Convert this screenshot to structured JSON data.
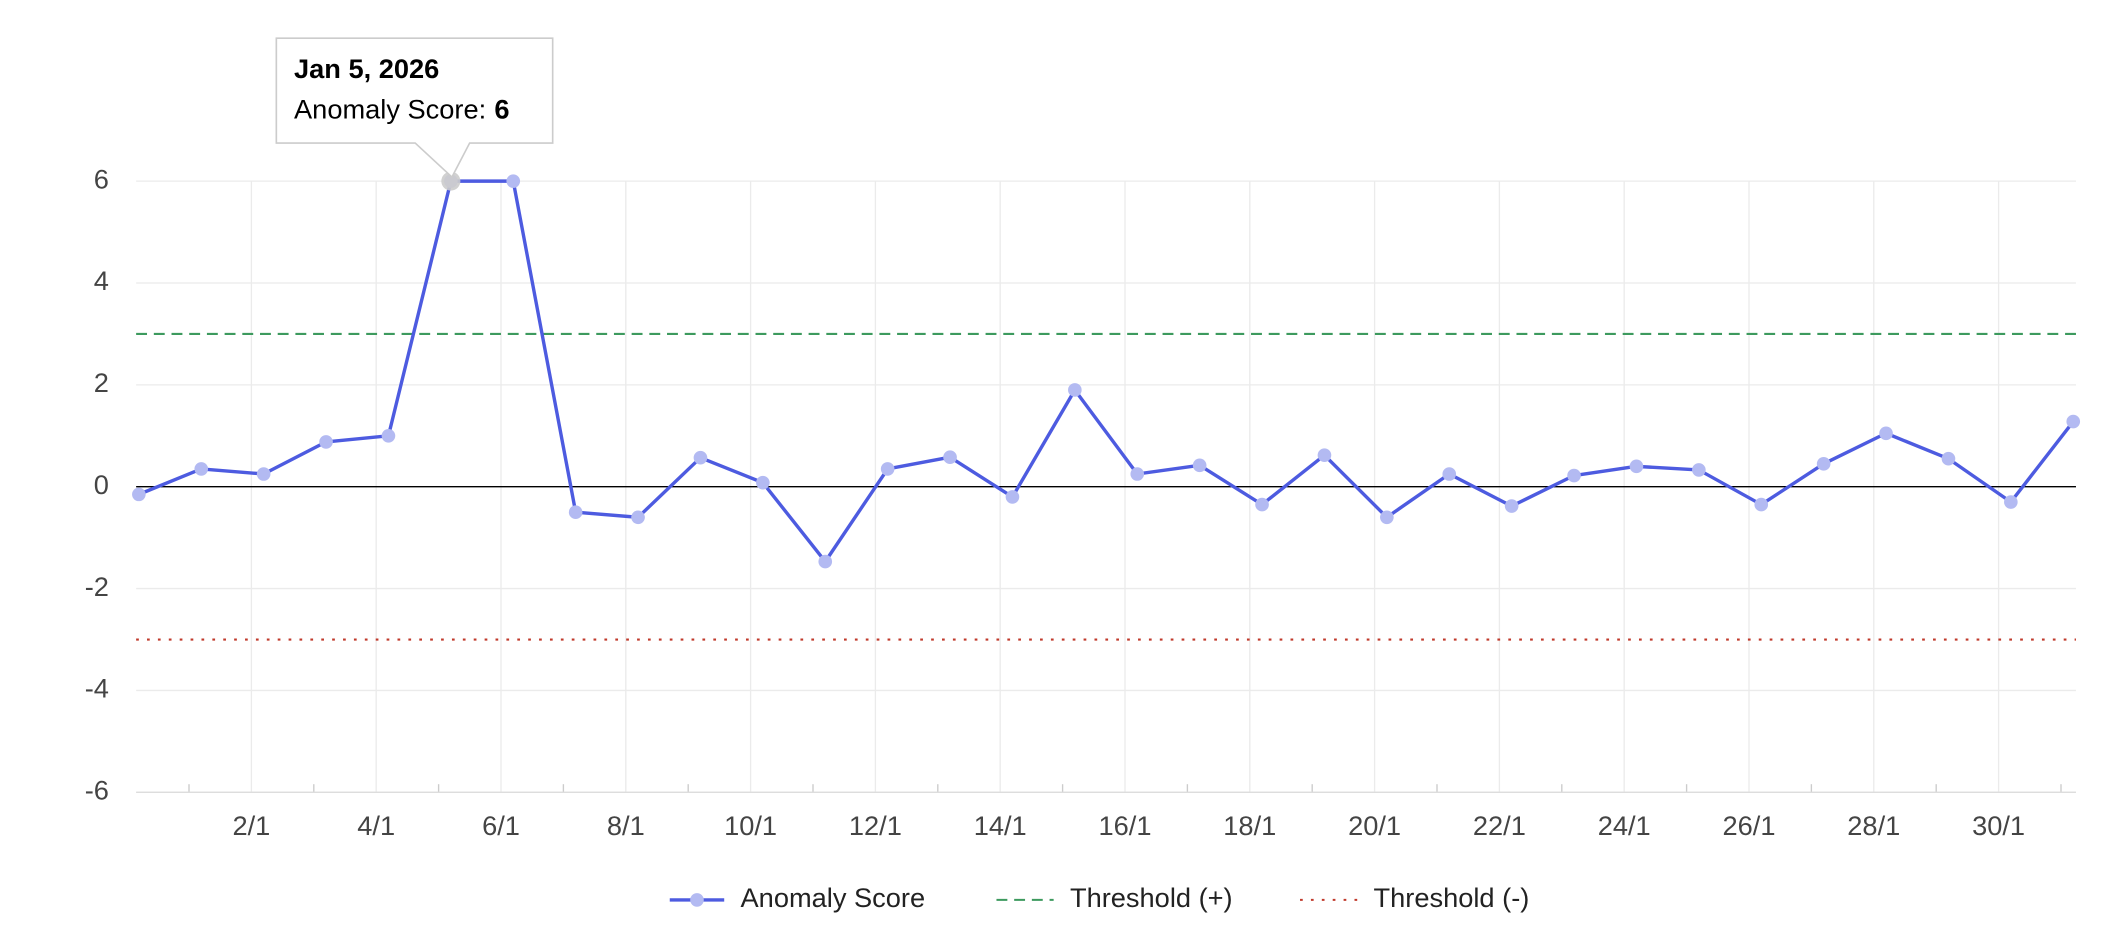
{
  "chart_data": {
    "type": "line",
    "categories": [
      null,
      null,
      "2/1",
      null,
      "4/1",
      null,
      "6/1",
      null,
      "8/1",
      null,
      "10/1",
      null,
      "12/1",
      null,
      "14/1",
      null,
      "16/1",
      null,
      "18/1",
      null,
      "20/1",
      null,
      "22/1",
      null,
      "24/1",
      null,
      "26/1",
      null,
      "28/1",
      null,
      "30/1",
      null
    ],
    "series": [
      {
        "name": "Anomaly Score",
        "color": "#4d5be0",
        "marker_color": "#b3baf2",
        "values": [
          -0.15,
          0.35,
          0.25,
          0.88,
          1.0,
          6,
          6,
          -0.5,
          -0.6,
          0.57,
          0.08,
          -1.47,
          0.35,
          0.58,
          -0.2,
          1.9,
          0.25,
          0.42,
          -0.35,
          0.62,
          -0.6,
          0.25,
          -0.38,
          0.22,
          0.4,
          0.33,
          -0.35,
          0.45,
          1.05,
          0.55,
          -0.3,
          1.28
        ]
      }
    ],
    "thresholds": [
      {
        "name": "Threshold (+)",
        "value": 3,
        "color": "#3d9a5e",
        "style": "dashed"
      },
      {
        "name": "Threshold (-)",
        "value": -3,
        "color": "#c0392b",
        "style": "dotted"
      }
    ],
    "ylim": [
      -6,
      6
    ],
    "yticks": [
      -6,
      -4,
      -2,
      0,
      2,
      4,
      6
    ],
    "grid": true,
    "legend": "bottom",
    "tooltip": {
      "title": "Jan 5, 2026",
      "label": "Anomaly Score:",
      "index": 5
    }
  }
}
